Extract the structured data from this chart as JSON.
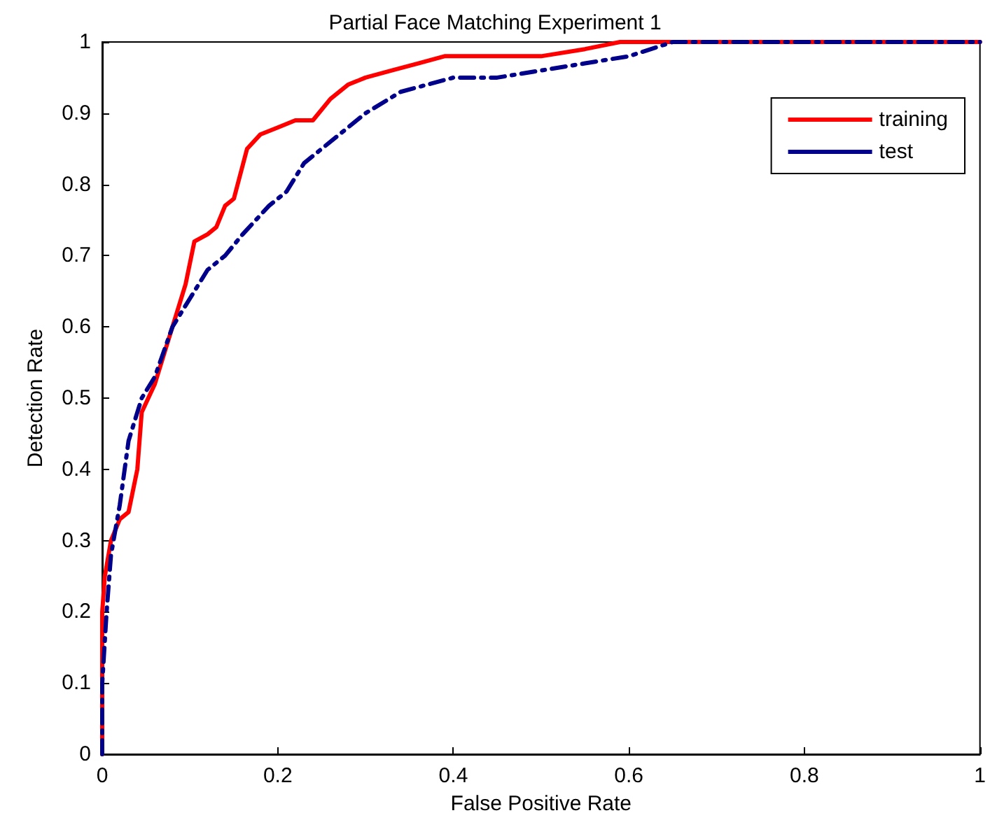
{
  "chart_data": {
    "type": "line",
    "title": "Partial Face Matching Experiment 1",
    "xlabel": "False Positive Rate",
    "ylabel": "Detection Rate",
    "xlim": [
      0,
      1
    ],
    "xticks": [
      0,
      0.2,
      0.4,
      0.6,
      0.8,
      1
    ],
    "ylim": [
      0,
      1
    ],
    "yticks": [
      0,
      0.1,
      0.2,
      0.3,
      0.4,
      0.5,
      0.6,
      0.7,
      0.8,
      0.9,
      1
    ],
    "grid": false,
    "legend": "top right",
    "marker": "none",
    "series": [
      {
        "name": "training",
        "color": "#ff0000",
        "line_style": "solid",
        "x": [
          0,
          0,
          0.003,
          0.01,
          0.02,
          0.03,
          0.04,
          0.045,
          0.06,
          0.07,
          0.085,
          0.095,
          0.105,
          0.12,
          0.13,
          0.14,
          0.15,
          0.165,
          0.18,
          0.2,
          0.22,
          0.24,
          0.26,
          0.28,
          0.3,
          0.33,
          0.36,
          0.39,
          0.45,
          0.5,
          0.55,
          0.59,
          0.7,
          1
        ],
        "values": [
          0,
          0.2,
          0.25,
          0.3,
          0.33,
          0.34,
          0.4,
          0.48,
          0.52,
          0.56,
          0.62,
          0.66,
          0.72,
          0.73,
          0.74,
          0.77,
          0.78,
          0.85,
          0.87,
          0.88,
          0.89,
          0.89,
          0.92,
          0.94,
          0.95,
          0.96,
          0.97,
          0.98,
          0.98,
          0.98,
          0.99,
          1,
          1,
          1
        ]
      },
      {
        "name": "test",
        "color": "#00008b",
        "line_style": "dashed",
        "x": [
          0,
          0,
          0.005,
          0.01,
          0.02,
          0.03,
          0.045,
          0.06,
          0.08,
          0.1,
          0.12,
          0.14,
          0.16,
          0.19,
          0.21,
          0.23,
          0.25,
          0.27,
          0.3,
          0.34,
          0.37,
          0.4,
          0.45,
          0.5,
          0.55,
          0.6,
          0.65,
          0.7,
          1
        ],
        "values": [
          0,
          0.1,
          0.2,
          0.28,
          0.35,
          0.44,
          0.5,
          0.53,
          0.6,
          0.64,
          0.68,
          0.7,
          0.73,
          0.77,
          0.79,
          0.83,
          0.85,
          0.87,
          0.9,
          0.93,
          0.94,
          0.95,
          0.95,
          0.96,
          0.97,
          0.98,
          1,
          1,
          1
        ]
      }
    ]
  }
}
